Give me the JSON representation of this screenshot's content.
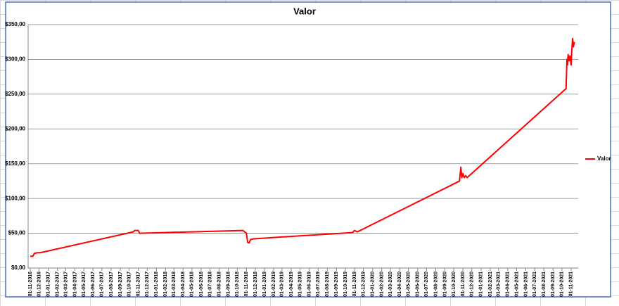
{
  "chart_data": {
    "type": "line",
    "title": "Valor",
    "x": [
      "2016-11-01",
      "2016-11-10",
      "2016-11-15",
      "2016-11-25",
      "2016-12-05",
      "2017-10-15",
      "2017-10-20",
      "2017-11-01",
      "2017-11-05",
      "2018-10-20",
      "2018-11-01",
      "2018-11-05",
      "2018-11-10",
      "2018-11-15",
      "2018-11-25",
      "2019-10-25",
      "2019-11-01",
      "2019-11-10",
      "2019-11-20",
      "2020-10-20",
      "2020-10-25",
      "2020-10-28",
      "2020-11-01",
      "2020-11-05",
      "2020-11-10",
      "2020-11-15",
      "2021-10-15",
      "2021-10-18",
      "2021-10-20",
      "2021-10-22",
      "2021-10-25",
      "2021-10-28",
      "2021-11-01",
      "2021-11-03",
      "2021-11-06",
      "2021-11-09",
      "2021-11-12"
    ],
    "series": [
      {
        "name": "Valor",
        "color": "#ff0000",
        "values": [
          17,
          17,
          21,
          22,
          22,
          52,
          54,
          54,
          50,
          54,
          50,
          37,
          36,
          41,
          42,
          51,
          54,
          52,
          54,
          125,
          145,
          130,
          136,
          130,
          133,
          130,
          258,
          300,
          292,
          307,
          298,
          305,
          292,
          310,
          330,
          318,
          325
        ]
      }
    ],
    "xlim": [
      "2016-10-25",
      "2021-11-25"
    ],
    "xticks": [
      {
        "value": "2016-11-01",
        "label": "01-11-2016"
      },
      {
        "value": "2016-12-01",
        "label": "01-12-2016"
      },
      {
        "value": "2017-01-01",
        "label": "01-01-2017"
      },
      {
        "value": "2017-02-01",
        "label": "01-02-2017"
      },
      {
        "value": "2017-03-01",
        "label": "01-03-2017"
      },
      {
        "value": "2017-04-01",
        "label": "01-04-2017"
      },
      {
        "value": "2017-05-01",
        "label": "01-05-2017"
      },
      {
        "value": "2017-06-01",
        "label": "01-06-2017"
      },
      {
        "value": "2017-07-01",
        "label": "01-07-2017"
      },
      {
        "value": "2017-08-01",
        "label": "01-08-2017"
      },
      {
        "value": "2017-09-01",
        "label": "01-09-2017"
      },
      {
        "value": "2017-10-01",
        "label": "01-10-2017"
      },
      {
        "value": "2017-11-01",
        "label": "01-11-2017"
      },
      {
        "value": "2017-12-01",
        "label": "01-12-2017"
      },
      {
        "value": "2018-01-01",
        "label": "01-01-2018"
      },
      {
        "value": "2018-02-01",
        "label": "01-02-2018"
      },
      {
        "value": "2018-03-01",
        "label": "01-03-2018"
      },
      {
        "value": "2018-04-01",
        "label": "01-04-2018"
      },
      {
        "value": "2018-05-01",
        "label": "01-05-2018"
      },
      {
        "value": "2018-06-01",
        "label": "01-06-2018"
      },
      {
        "value": "2018-07-01",
        "label": "01-07-2018"
      },
      {
        "value": "2018-08-01",
        "label": "01-08-2018"
      },
      {
        "value": "2018-09-01",
        "label": "01-09-2018"
      },
      {
        "value": "2018-10-01",
        "label": "01-10-2018"
      },
      {
        "value": "2018-11-01",
        "label": "01-11-2018"
      },
      {
        "value": "2018-12-01",
        "label": "01-12-2018"
      },
      {
        "value": "2019-01-01",
        "label": "01-01-2019"
      },
      {
        "value": "2019-02-01",
        "label": "01-02-2019"
      },
      {
        "value": "2019-03-01",
        "label": "01-03-2019"
      },
      {
        "value": "2019-04-01",
        "label": "01-04-2019"
      },
      {
        "value": "2019-05-01",
        "label": "01-05-2019"
      },
      {
        "value": "2019-06-01",
        "label": "01-06-2019"
      },
      {
        "value": "2019-07-01",
        "label": "01-07-2019"
      },
      {
        "value": "2019-08-01",
        "label": "01-08-2019"
      },
      {
        "value": "2019-09-01",
        "label": "01-09-2019"
      },
      {
        "value": "2019-10-01",
        "label": "01-10-2019"
      },
      {
        "value": "2019-11-01",
        "label": "01-11-2019"
      },
      {
        "value": "2019-12-01",
        "label": "01-12-2019"
      },
      {
        "value": "2020-01-01",
        "label": "01-01-2020"
      },
      {
        "value": "2020-02-01",
        "label": "01-02-2020"
      },
      {
        "value": "2020-03-01",
        "label": "01-03-2020"
      },
      {
        "value": "2020-04-01",
        "label": "01-04-2020"
      },
      {
        "value": "2020-05-01",
        "label": "01-05-2020"
      },
      {
        "value": "2020-06-01",
        "label": "01-06-2020"
      },
      {
        "value": "2020-07-01",
        "label": "01-07-2020"
      },
      {
        "value": "2020-08-01",
        "label": "01-08-2020"
      },
      {
        "value": "2020-09-01",
        "label": "01-09-2020"
      },
      {
        "value": "2020-10-01",
        "label": "01-10-2020"
      },
      {
        "value": "2020-11-01",
        "label": "01-11-2020"
      },
      {
        "value": "2020-12-01",
        "label": "01-12-2020"
      },
      {
        "value": "2021-01-01",
        "label": "01-01-2021"
      },
      {
        "value": "2021-02-01",
        "label": "01-02-2021"
      },
      {
        "value": "2021-03-01",
        "label": "01-03-2021"
      },
      {
        "value": "2021-04-01",
        "label": "01-04-2021"
      },
      {
        "value": "2021-05-01",
        "label": "01-05-2021"
      },
      {
        "value": "2021-06-01",
        "label": "01-06-2021"
      },
      {
        "value": "2021-07-01",
        "label": "01-07-2021"
      },
      {
        "value": "2021-08-01",
        "label": "01-08-2021"
      },
      {
        "value": "2021-09-01",
        "label": "01-09-2021"
      },
      {
        "value": "2021-10-01",
        "label": "01-10-2021"
      },
      {
        "value": "2021-11-01",
        "label": "01-11-2021"
      }
    ],
    "ylim": [
      0,
      350
    ],
    "yticks": [
      {
        "value": 0,
        "label": "$0,00"
      },
      {
        "value": 50,
        "label": "$50,00"
      },
      {
        "value": 100,
        "label": "$100,00"
      },
      {
        "value": 150,
        "label": "$150,00"
      },
      {
        "value": 200,
        "label": "$200,00"
      },
      {
        "value": 250,
        "label": "$250,00"
      },
      {
        "value": 300,
        "label": "$300,00"
      },
      {
        "value": 350,
        "label": "$350,00"
      }
    ],
    "grid": true,
    "legend": "right"
  }
}
